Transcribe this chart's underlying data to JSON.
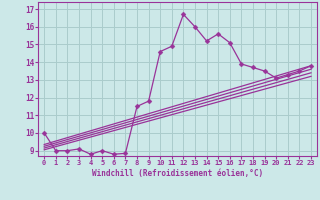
{
  "title": "",
  "xlabel": "Windchill (Refroidissement éolien,°C)",
  "ylabel": "",
  "xlim": [
    -0.5,
    23.5
  ],
  "ylim": [
    8.7,
    17.4
  ],
  "yticks": [
    9,
    10,
    11,
    12,
    13,
    14,
    15,
    16,
    17
  ],
  "xticks": [
    0,
    1,
    2,
    3,
    4,
    5,
    6,
    7,
    8,
    9,
    10,
    11,
    12,
    13,
    14,
    15,
    16,
    17,
    18,
    19,
    20,
    21,
    22,
    23
  ],
  "bg_color": "#cce8e8",
  "grid_color": "#aacccc",
  "line_color": "#993399",
  "zigzag_x": [
    0,
    1,
    2,
    3,
    4,
    5,
    6,
    7,
    8,
    9,
    10,
    11,
    12,
    13,
    14,
    15,
    16,
    17,
    18,
    19,
    20,
    21,
    22,
    23
  ],
  "zigzag_y": [
    10.0,
    9.0,
    9.0,
    9.1,
    8.8,
    9.0,
    8.8,
    8.85,
    11.5,
    11.8,
    14.6,
    14.9,
    16.7,
    16.0,
    15.2,
    15.6,
    15.1,
    13.9,
    13.7,
    13.5,
    13.1,
    13.3,
    13.5,
    13.8
  ],
  "diag_lines": [
    {
      "x": [
        0,
        23
      ],
      "y": [
        9.05,
        13.2
      ]
    },
    {
      "x": [
        0,
        23
      ],
      "y": [
        9.15,
        13.4
      ]
    },
    {
      "x": [
        0,
        23
      ],
      "y": [
        9.25,
        13.6
      ]
    },
    {
      "x": [
        0,
        23
      ],
      "y": [
        9.35,
        13.8
      ]
    }
  ],
  "marker_size": 2.5,
  "linewidth": 0.9
}
